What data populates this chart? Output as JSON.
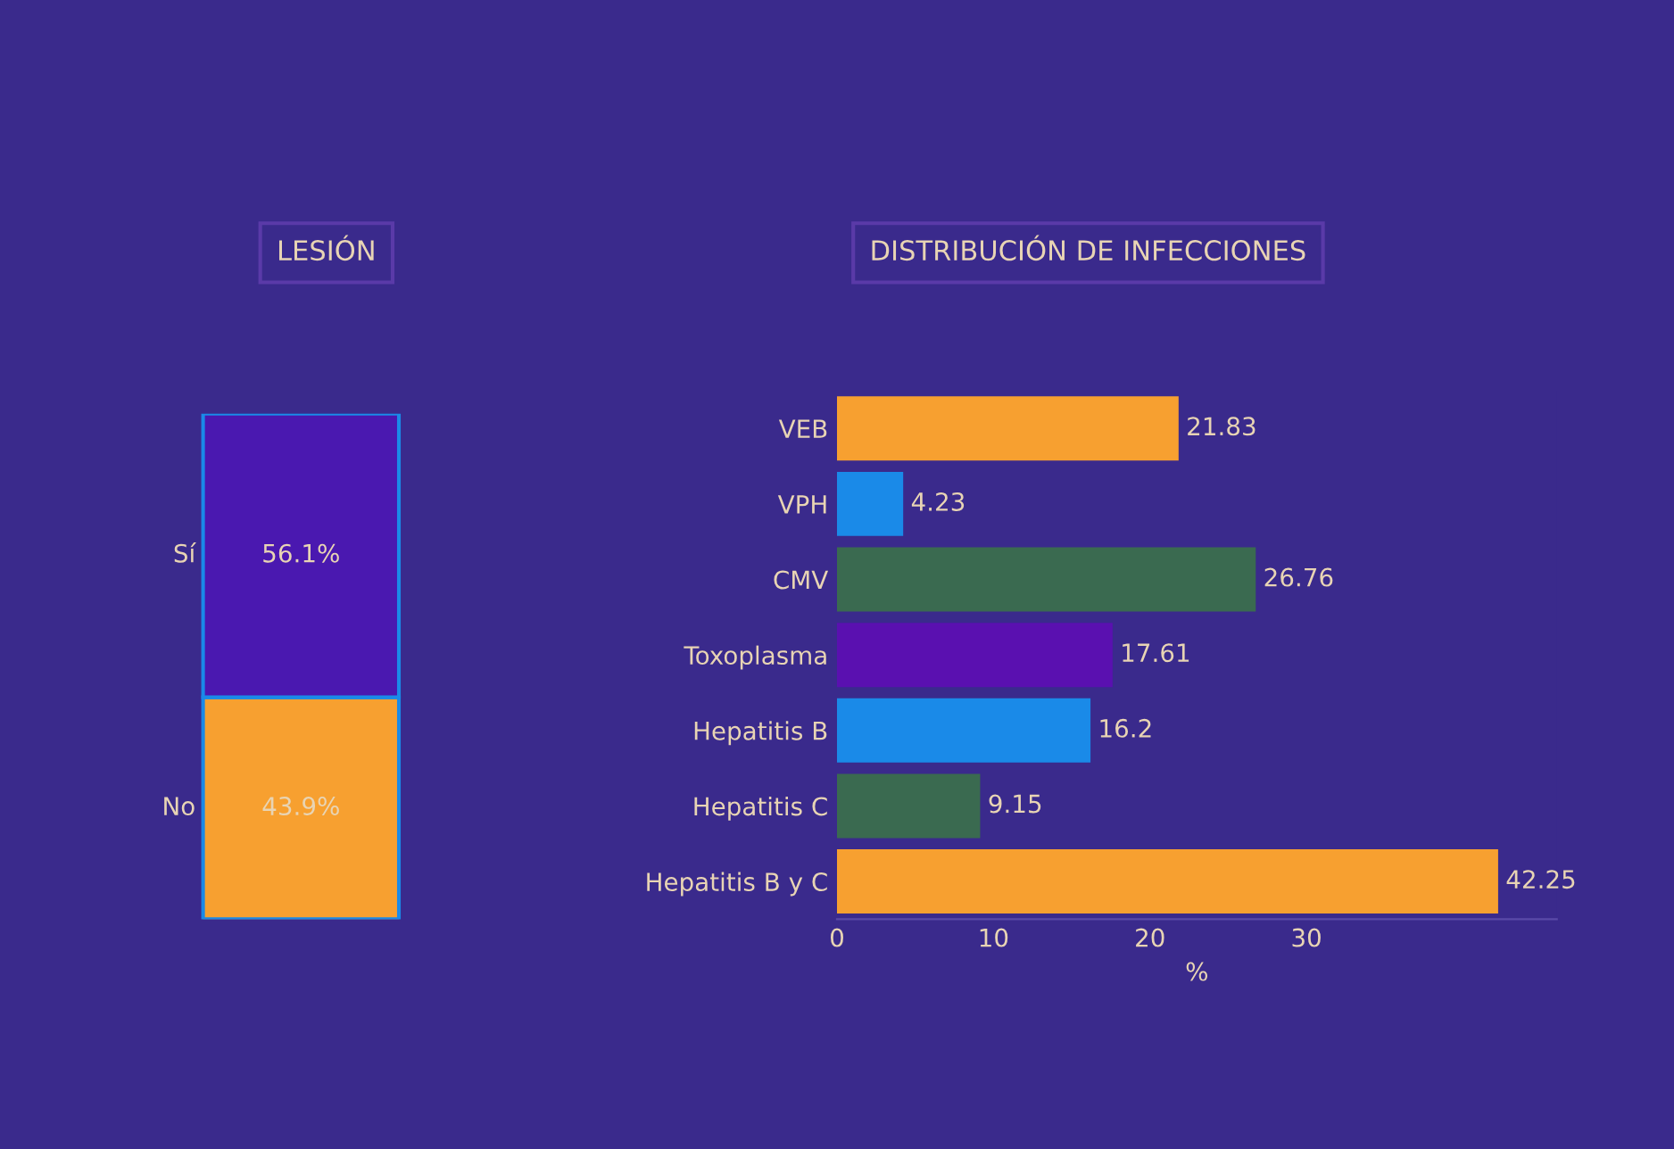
{
  "chart_data": [
    {
      "type": "bar",
      "title": "LESIÓN",
      "stacked": true,
      "categories": [
        null
      ],
      "tick_labels": false,
      "series": [
        {
          "name": "No",
          "color": "#f7a030",
          "values": [
            43.9
          ],
          "value_labels": [
            "43.9%"
          ]
        },
        {
          "name": "Sí",
          "color": "#4a18b0",
          "values": [
            56.1
          ],
          "value_labels": [
            "56.1%"
          ]
        }
      ]
    },
    {
      "type": "bar",
      "title": "DISTRIBUCIÓN DE INFECCIONES",
      "orientation": "horizontal",
      "xlabel": "%",
      "categories": [
        "VEB",
        "VPH",
        "CMV",
        "Toxoplasma",
        "Hepatitis B",
        "Hepatitis C",
        "Hepatitis B y C"
      ],
      "values": [
        21.83,
        4.23,
        26.76,
        17.61,
        16.2,
        9.15,
        42.25
      ],
      "colors": [
        "#f7a030",
        "#1a8ae8",
        "#3a6a50",
        "#5a10b0",
        "#1a8ae8",
        "#3a6a50",
        "#f7a030"
      ],
      "xlim": [
        0,
        46
      ],
      "xticks": [
        0,
        10,
        20,
        30
      ],
      "data_labels": true,
      "grid": false
    }
  ]
}
